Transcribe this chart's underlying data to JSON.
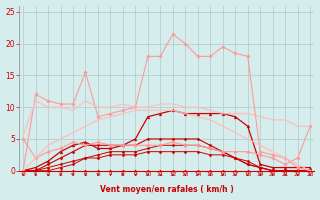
{
  "x": [
    0,
    1,
    2,
    3,
    4,
    5,
    6,
    7,
    8,
    9,
    10,
    11,
    12,
    13,
    14,
    15,
    16,
    17,
    18,
    19,
    20,
    21,
    22,
    23
  ],
  "lines": [
    {
      "y": [
        0,
        0,
        0,
        0,
        0,
        0,
        0,
        0,
        0,
        0,
        0,
        0,
        0,
        0,
        0,
        0,
        0,
        0,
        0,
        0,
        0,
        0,
        0,
        0
      ],
      "color": "#cc0000",
      "lw": 0.7,
      "marker": "D",
      "ms": 1.5,
      "alpha": 1.0
    },
    {
      "y": [
        0,
        0,
        0,
        0.5,
        1,
        2,
        2,
        2.5,
        2.5,
        2.5,
        3,
        3,
        3,
        3,
        3,
        2.5,
        2.5,
        2,
        1.5,
        0.5,
        0,
        0,
        0,
        0
      ],
      "color": "#cc0000",
      "lw": 0.7,
      "marker": "D",
      "ms": 1.5,
      "alpha": 1.0
    },
    {
      "y": [
        0,
        0,
        0.5,
        1,
        1.5,
        2,
        2.5,
        3,
        3,
        3,
        3.5,
        4,
        4,
        4,
        4,
        3.5,
        3,
        2,
        1,
        0.5,
        0,
        0,
        0,
        0
      ],
      "color": "#cc0000",
      "lw": 0.7,
      "marker": "D",
      "ms": 1.5,
      "alpha": 1.0
    },
    {
      "y": [
        0,
        0,
        1,
        2,
        3,
        4,
        4,
        4,
        4,
        4,
        5,
        5,
        5,
        5,
        5,
        4,
        3,
        2,
        1,
        0.5,
        0,
        0,
        0,
        0
      ],
      "color": "#cc0000",
      "lw": 0.8,
      "marker": "D",
      "ms": 1.5,
      "alpha": 1.0
    },
    {
      "y": [
        0,
        0.5,
        1.5,
        3,
        4,
        4.5,
        3.5,
        3.5,
        4,
        5,
        8.5,
        9,
        9.5,
        9,
        9,
        9,
        9,
        8.5,
        7,
        1,
        0.5,
        0.5,
        0.5,
        0.5
      ],
      "color": "#cc0000",
      "lw": 0.9,
      "marker": "^",
      "ms": 2.0,
      "alpha": 1.0
    },
    {
      "y": [
        5,
        2,
        3,
        3.5,
        4.5,
        4,
        4.5,
        4,
        4,
        4,
        4,
        4,
        4.5,
        4,
        4,
        3.5,
        3,
        3,
        3,
        2.5,
        2,
        1,
        2,
        7
      ],
      "color": "#ff9999",
      "lw": 0.8,
      "marker": "D",
      "ms": 1.8,
      "alpha": 1.0
    },
    {
      "y": [
        0,
        12,
        11,
        10.5,
        10.5,
        15.5,
        8.5,
        9,
        9.5,
        10,
        18,
        18,
        21.5,
        20,
        18,
        18,
        19.5,
        18.5,
        18,
        3,
        2.5,
        2,
        0.5,
        0
      ],
      "color": "#ff9999",
      "lw": 0.8,
      "marker": "D",
      "ms": 1.8,
      "alpha": 1.0
    },
    {
      "y": [
        5.5,
        11,
        10,
        10,
        9.5,
        11,
        10,
        10,
        10.5,
        10,
        10,
        10.5,
        10.5,
        10,
        10,
        9.5,
        9,
        9,
        9,
        8.5,
        8,
        8,
        7,
        7
      ],
      "color": "#ffbbbb",
      "lw": 1.0,
      "marker": null,
      "ms": 0,
      "alpha": 0.85
    },
    {
      "y": [
        0,
        2,
        4,
        5,
        6,
        7,
        8,
        8.5,
        9,
        9.5,
        9.5,
        9.5,
        9.5,
        9,
        8.5,
        8,
        7,
        6,
        5,
        4,
        3,
        2,
        1,
        0
      ],
      "color": "#ffbbbb",
      "lw": 1.0,
      "marker": null,
      "ms": 0,
      "alpha": 0.85
    }
  ],
  "xlim": [
    -0.3,
    23.3
  ],
  "ylim": [
    0,
    26
  ],
  "yticks": [
    0,
    5,
    10,
    15,
    20,
    25
  ],
  "xticks": [
    0,
    1,
    2,
    3,
    4,
    5,
    6,
    7,
    8,
    9,
    10,
    11,
    12,
    13,
    14,
    15,
    16,
    17,
    18,
    19,
    20,
    21,
    22,
    23
  ],
  "xlabel": "Vent moyen/en rafales ( km/h )",
  "bg_color": "#d5eeed",
  "grid_color": "#b0c8c8",
  "tick_color": "#cc0000",
  "label_color": "#cc0000"
}
